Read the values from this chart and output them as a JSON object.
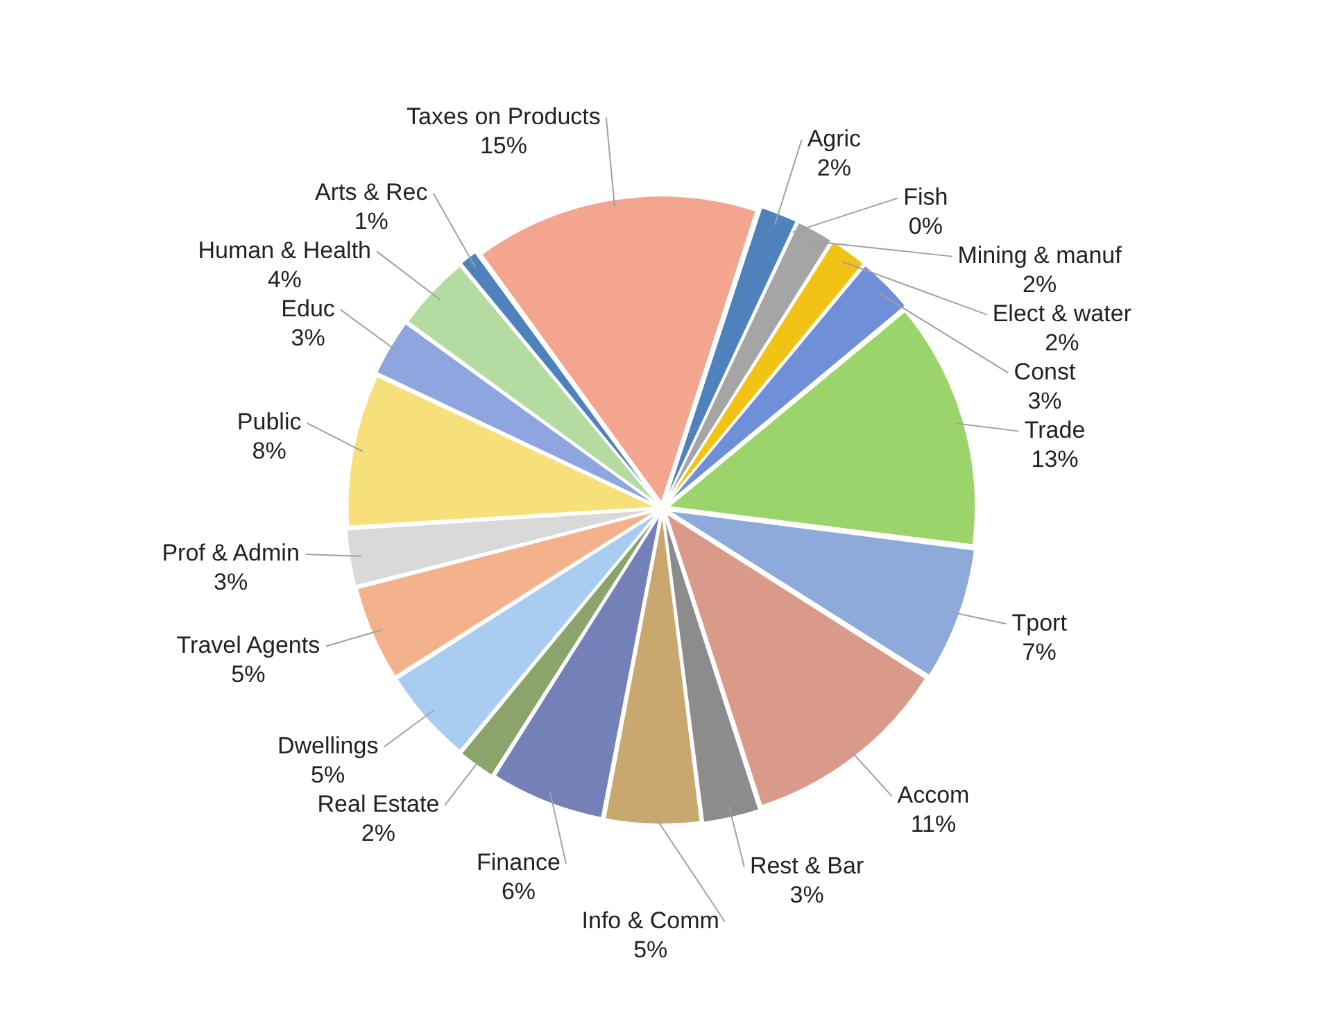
{
  "chart_data": {
    "type": "pie",
    "categories": [
      "Agric",
      "Fish",
      "Mining & manuf",
      "Elect & water",
      "Const",
      "Trade",
      "Tport",
      "Accom",
      "Rest & Bar",
      "Info & Comm",
      "Finance",
      "Real Estate",
      "Dwellings",
      "Travel Agents",
      "Prof & Admin",
      "Public",
      "Educ",
      "Human & Health",
      "Arts & Rec",
      "Taxes on Products"
    ],
    "values": [
      2,
      0,
      2,
      2,
      3,
      13,
      7,
      11,
      3,
      5,
      6,
      2,
      5,
      5,
      3,
      8,
      3,
      4,
      1,
      15
    ],
    "value_labels": [
      "2%",
      "0%",
      "2%",
      "2%",
      "3%",
      "13%",
      "7%",
      "11%",
      "3%",
      "5%",
      "6%",
      "2%",
      "5%",
      "5%",
      "3%",
      "8%",
      "3%",
      "4%",
      "1%",
      "15%"
    ],
    "colors": [
      "#4f81bd",
      "#c0504d",
      "#a5a5a5",
      "#f2c314",
      "#6f8fd8",
      "#9bd46a",
      "#8eaadb",
      "#d99a8a",
      "#8c8c8c",
      "#c9a870",
      "#7480b8",
      "#8aa46c",
      "#a9cdf0",
      "#f4b28c",
      "#d9d9d9",
      "#f7e07a",
      "#8ea5e0",
      "#b5dca0",
      "#4f81bd",
      "#f4a590"
    ],
    "legend": false
  }
}
